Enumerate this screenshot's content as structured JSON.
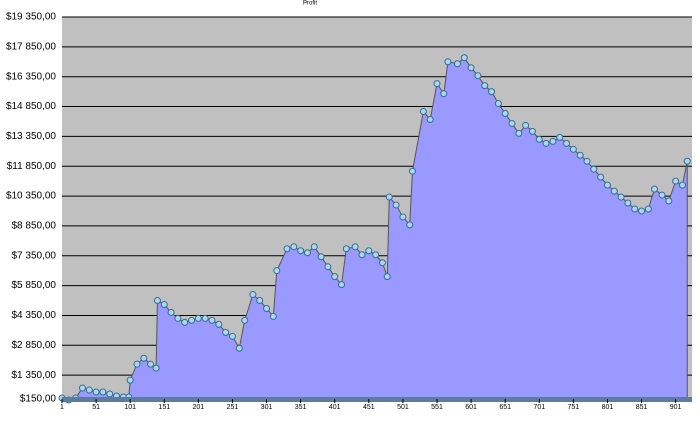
{
  "chart_data": {
    "type": "area",
    "title": "Profit",
    "x": [
      1,
      11,
      21,
      31,
      41,
      51,
      61,
      71,
      81,
      91,
      99,
      101,
      111,
      121,
      131,
      139,
      141,
      151,
      161,
      171,
      181,
      191,
      201,
      211,
      221,
      231,
      241,
      251,
      261,
      269,
      281,
      291,
      301,
      311,
      316,
      331,
      341,
      351,
      361,
      371,
      381,
      391,
      401,
      411,
      418,
      431,
      441,
      451,
      461,
      471,
      478,
      481,
      491,
      501,
      511,
      515,
      531,
      541,
      551,
      561,
      567,
      581,
      591,
      601,
      611,
      621,
      631,
      641,
      651,
      661,
      671,
      681,
      691,
      701,
      711,
      721,
      731,
      741,
      751,
      761,
      771,
      781,
      791,
      801,
      811,
      821,
      831,
      841,
      851,
      861,
      870,
      881,
      891,
      901,
      911,
      918
    ],
    "series": [
      {
        "name": "Profit",
        "color": "#9999ff",
        "values": [
          200,
          100,
          200,
          700,
          600,
          500,
          500,
          400,
          300,
          250,
          250,
          1100,
          1900,
          2200,
          1900,
          1700,
          5100,
          4900,
          4500,
          4200,
          4000,
          4100,
          4200,
          4200,
          4100,
          3900,
          3500,
          3300,
          2700,
          4100,
          5400,
          5100,
          4700,
          4300,
          6600,
          7700,
          7800,
          7600,
          7500,
          7800,
          7300,
          6800,
          6300,
          5900,
          7700,
          7800,
          7400,
          7600,
          7400,
          7000,
          6300,
          10300,
          9900,
          9300,
          8900,
          11600,
          14600,
          14200,
          16000,
          15500,
          17100,
          17000,
          17300,
          16800,
          16400,
          15900,
          15600,
          15000,
          14500,
          14000,
          13500,
          13900,
          13600,
          13200,
          13000,
          13100,
          13300,
          13000,
          12700,
          12400,
          12100,
          11700,
          11300,
          10900,
          10600,
          10300,
          10000,
          9700,
          9600,
          9700,
          10700,
          10400,
          10100,
          11100,
          10900,
          12100
        ]
      }
    ],
    "xlim": [
      1,
      925
    ],
    "xticks": [
      1,
      51,
      101,
      151,
      201,
      251,
      301,
      351,
      401,
      451,
      501,
      551,
      601,
      651,
      701,
      751,
      801,
      851,
      901
    ],
    "ylim": [
      150,
      19350
    ],
    "yticks": [
      {
        "value": 150,
        "label": "$150,00"
      },
      {
        "value": 1350,
        "label": "$1 350,00"
      },
      {
        "value": 2850,
        "label": "$2 850,00"
      },
      {
        "value": 4350,
        "label": "$4 350,00"
      },
      {
        "value": 5850,
        "label": "$5 850,00"
      },
      {
        "value": 7350,
        "label": "$7 350,00"
      },
      {
        "value": 8850,
        "label": "$8 850,00"
      },
      {
        "value": 10350,
        "label": "$10 350,00"
      },
      {
        "value": 11850,
        "label": "$11 850,00"
      },
      {
        "value": 13350,
        "label": "$13 350,00"
      },
      {
        "value": 14850,
        "label": "$14 850,00"
      },
      {
        "value": 16350,
        "label": "$16 350,00"
      },
      {
        "value": 17850,
        "label": "$17 850,00"
      },
      {
        "value": 19350,
        "label": "$19 350,00"
      }
    ],
    "grid": true
  }
}
